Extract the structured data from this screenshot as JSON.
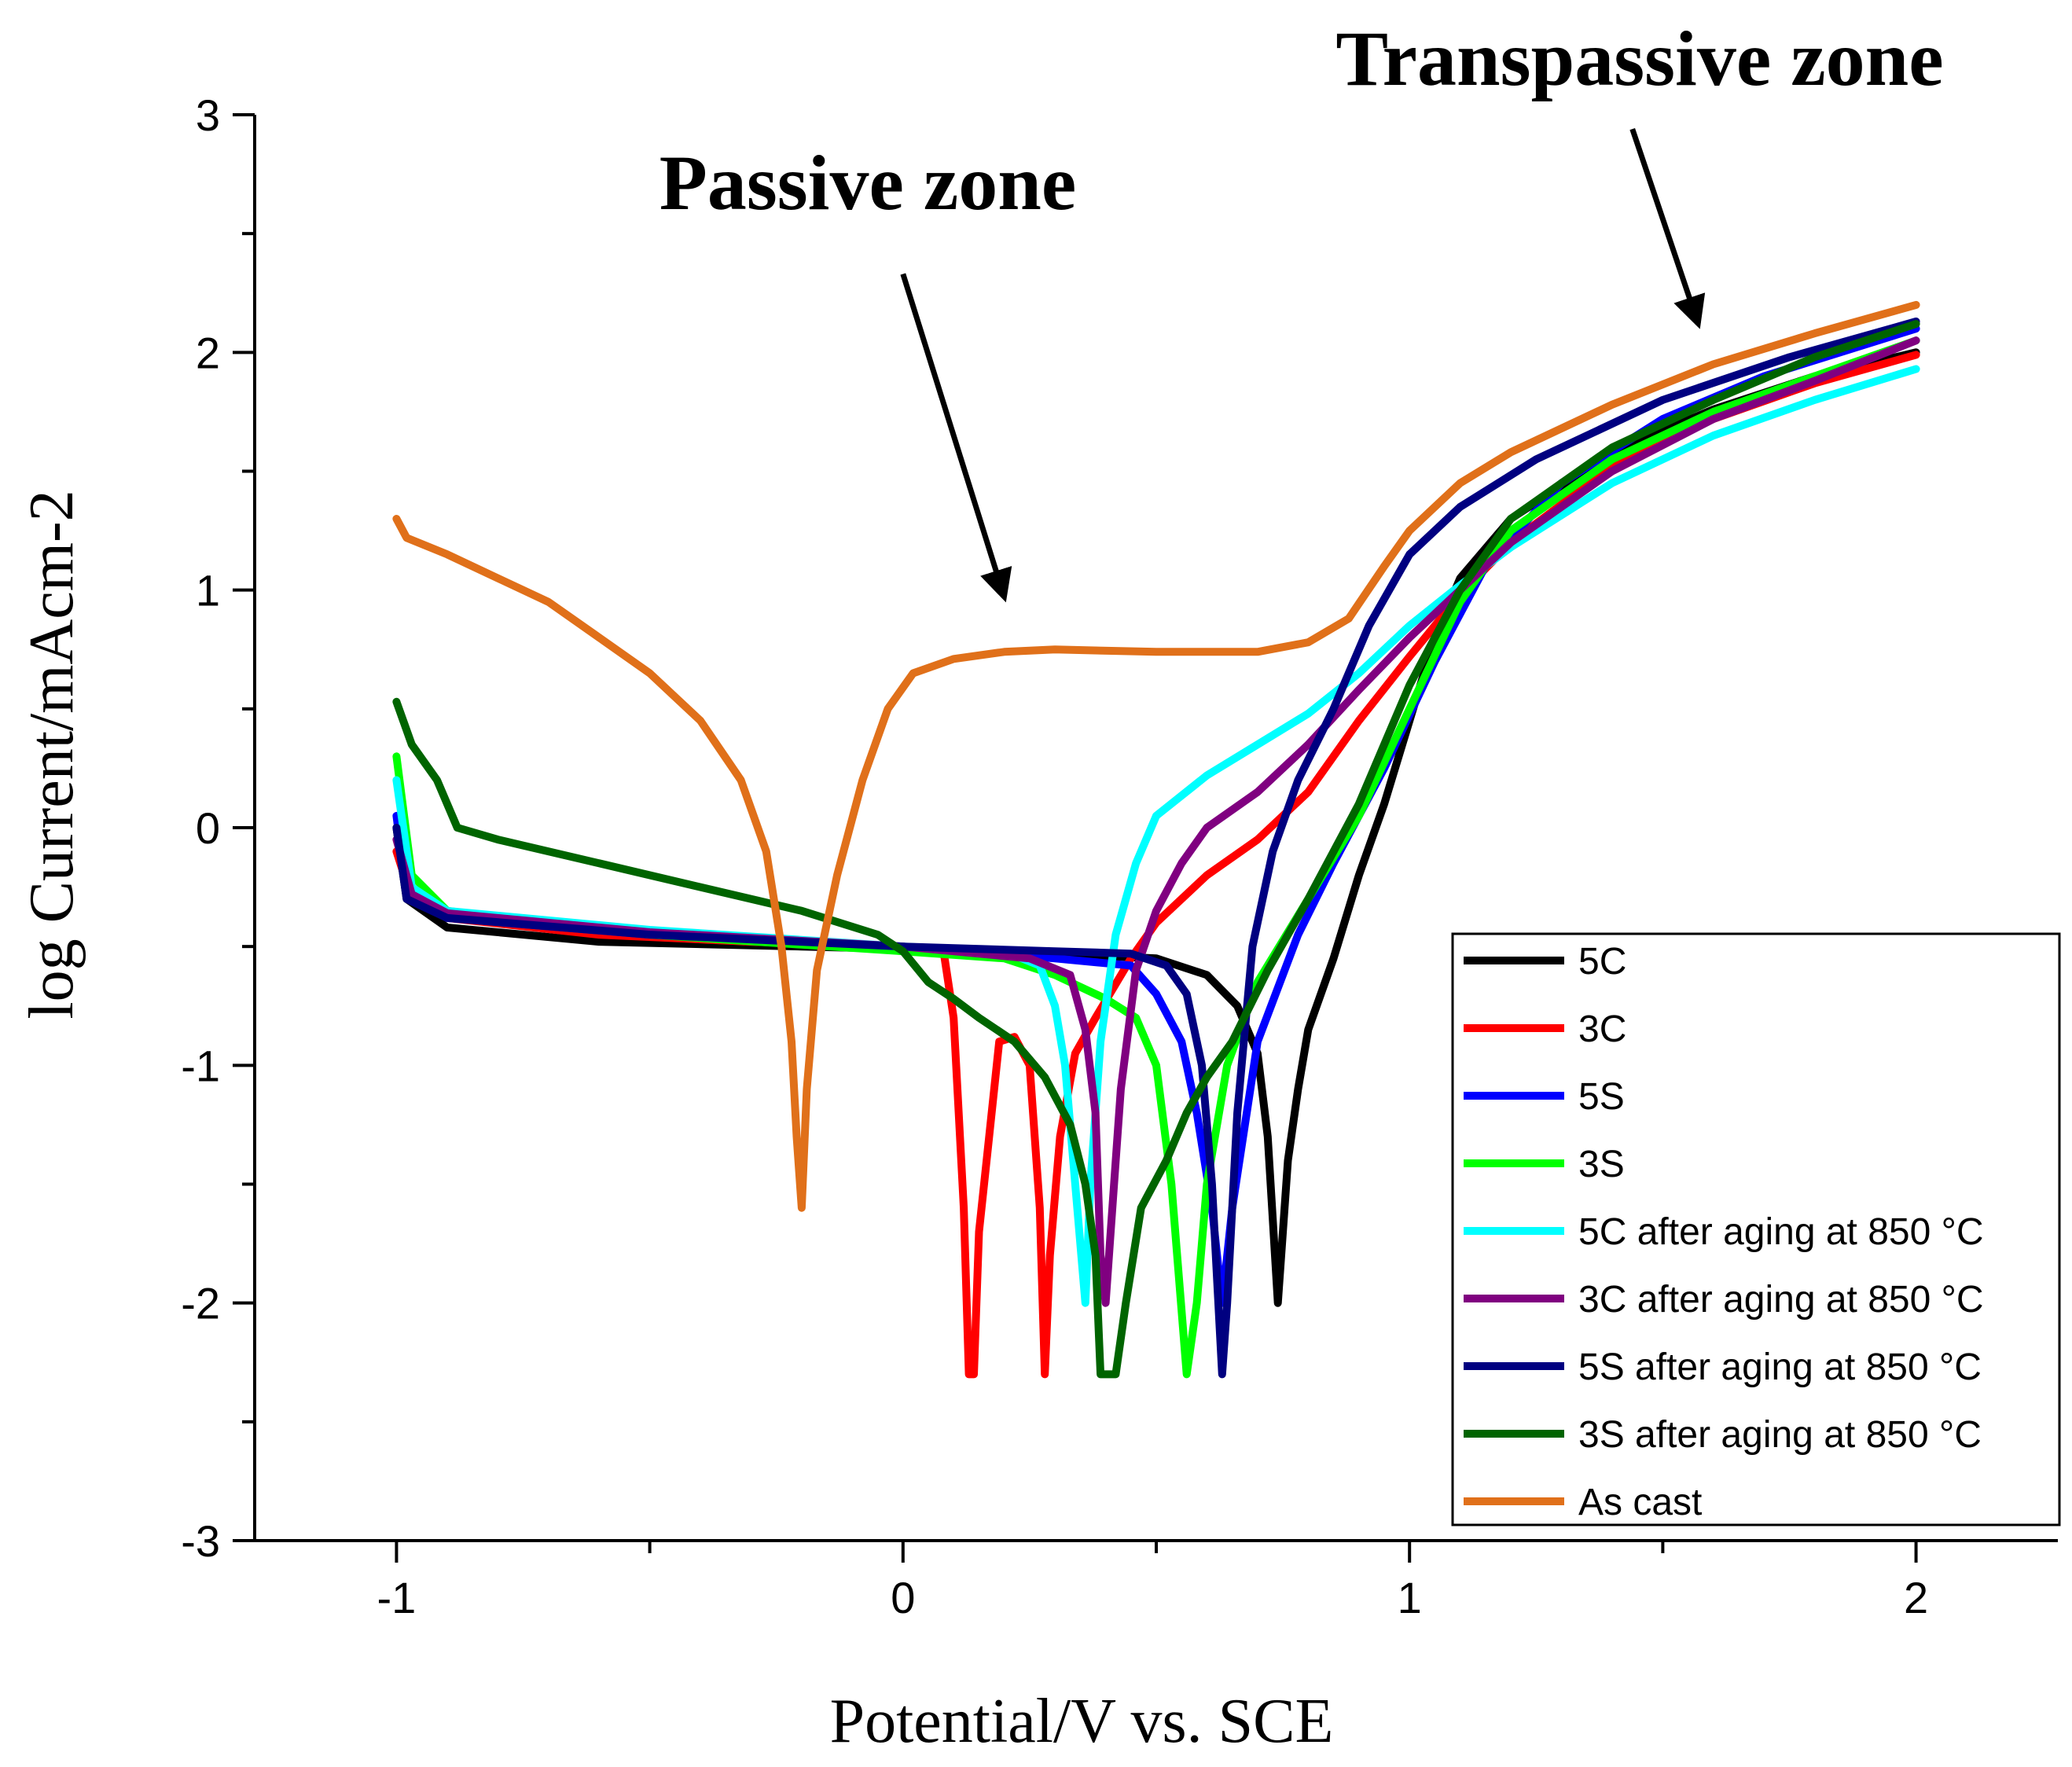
{
  "chart_data": {
    "type": "line",
    "title": "",
    "xlabel": "Potential/V vs. SCE",
    "ylabel": "log Current/mAcm-2",
    "xlim": [
      -1.28,
      2.28
    ],
    "ylim": [
      -3,
      3
    ],
    "xticks": [
      -1,
      0,
      1,
      2
    ],
    "xtick_labels": [
      "-1",
      "0",
      "1",
      "2"
    ],
    "yticks": [
      -3,
      -2,
      -1,
      0,
      1,
      2,
      3
    ],
    "ytick_labels": [
      "-3",
      "-2",
      "-1",
      "0",
      "1",
      "2",
      "3"
    ],
    "grid": false,
    "legend_position": "bottom-right",
    "annotations": [
      {
        "text": "Transpassive zone",
        "from": [
          1.44,
          2.94
        ],
        "to": [
          1.57,
          2.12
        ]
      },
      {
        "text": "Passive zone",
        "from": [
          0.0,
          2.33
        ],
        "to": [
          0.2,
          0.97
        ]
      }
    ],
    "series": [
      {
        "name": "5C",
        "color": "#000000",
        "points": [
          [
            -1.0,
            0.0
          ],
          [
            -0.98,
            -0.3
          ],
          [
            -0.9,
            -0.42
          ],
          [
            -0.6,
            -0.48
          ],
          [
            -0.2,
            -0.5
          ],
          [
            0.2,
            -0.52
          ],
          [
            0.5,
            -0.55
          ],
          [
            0.6,
            -0.62
          ],
          [
            0.66,
            -0.75
          ],
          [
            0.7,
            -0.95
          ],
          [
            0.72,
            -1.3
          ],
          [
            0.74,
            -2.0
          ],
          [
            0.76,
            -1.4
          ],
          [
            0.78,
            -1.1
          ],
          [
            0.8,
            -0.85
          ],
          [
            0.85,
            -0.55
          ],
          [
            0.9,
            -0.2
          ],
          [
            0.95,
            0.1
          ],
          [
            1.0,
            0.45
          ],
          [
            1.05,
            0.8
          ],
          [
            1.1,
            1.05
          ],
          [
            1.2,
            1.3
          ],
          [
            1.4,
            1.58
          ],
          [
            1.6,
            1.76
          ],
          [
            1.8,
            1.9
          ],
          [
            2.0,
            2.0
          ]
        ]
      },
      {
        "name": "3C",
        "color": "#ff0000",
        "points": [
          [
            -1.0,
            -0.1
          ],
          [
            -0.97,
            -0.3
          ],
          [
            -0.9,
            -0.38
          ],
          [
            -0.6,
            -0.45
          ],
          [
            -0.3,
            -0.48
          ],
          [
            0.0,
            -0.5
          ],
          [
            0.08,
            -0.52
          ],
          [
            0.1,
            -0.8
          ],
          [
            0.12,
            -1.6
          ],
          [
            0.13,
            -2.3
          ],
          [
            0.14,
            -2.3
          ],
          [
            0.15,
            -1.7
          ],
          [
            0.17,
            -1.3
          ],
          [
            0.19,
            -0.9
          ],
          [
            0.22,
            -0.88
          ],
          [
            0.25,
            -1.0
          ],
          [
            0.27,
            -1.6
          ],
          [
            0.28,
            -2.3
          ],
          [
            0.29,
            -1.8
          ],
          [
            0.31,
            -1.3
          ],
          [
            0.34,
            -0.95
          ],
          [
            0.38,
            -0.8
          ],
          [
            0.45,
            -0.55
          ],
          [
            0.5,
            -0.4
          ],
          [
            0.6,
            -0.2
          ],
          [
            0.7,
            -0.05
          ],
          [
            0.8,
            0.15
          ],
          [
            0.9,
            0.45
          ],
          [
            1.0,
            0.72
          ],
          [
            1.1,
            0.98
          ],
          [
            1.2,
            1.2
          ],
          [
            1.4,
            1.52
          ],
          [
            1.6,
            1.72
          ],
          [
            1.8,
            1.87
          ],
          [
            2.0,
            1.99
          ]
        ]
      },
      {
        "name": "5S",
        "color": "#0000ff",
        "points": [
          [
            -1.0,
            0.05
          ],
          [
            -0.98,
            -0.28
          ],
          [
            -0.9,
            -0.38
          ],
          [
            -0.5,
            -0.45
          ],
          [
            0.0,
            -0.5
          ],
          [
            0.3,
            -0.55
          ],
          [
            0.45,
            -0.58
          ],
          [
            0.5,
            -0.7
          ],
          [
            0.55,
            -0.9
          ],
          [
            0.58,
            -1.2
          ],
          [
            0.61,
            -1.6
          ],
          [
            0.63,
            -2.0
          ],
          [
            0.65,
            -1.6
          ],
          [
            0.7,
            -0.9
          ],
          [
            0.78,
            -0.45
          ],
          [
            0.85,
            -0.15
          ],
          [
            0.95,
            0.25
          ],
          [
            1.05,
            0.7
          ],
          [
            1.15,
            1.1
          ],
          [
            1.3,
            1.45
          ],
          [
            1.5,
            1.72
          ],
          [
            1.7,
            1.9
          ],
          [
            2.0,
            2.1
          ]
        ]
      },
      {
        "name": "3S",
        "color": "#00ff00",
        "points": [
          [
            -1.0,
            0.3
          ],
          [
            -0.97,
            -0.2
          ],
          [
            -0.9,
            -0.35
          ],
          [
            -0.5,
            -0.45
          ],
          [
            0.0,
            -0.52
          ],
          [
            0.2,
            -0.55
          ],
          [
            0.3,
            -0.62
          ],
          [
            0.4,
            -0.72
          ],
          [
            0.46,
            -0.8
          ],
          [
            0.5,
            -1.0
          ],
          [
            0.53,
            -1.5
          ],
          [
            0.56,
            -2.3
          ],
          [
            0.58,
            -2.0
          ],
          [
            0.6,
            -1.5
          ],
          [
            0.64,
            -1.0
          ],
          [
            0.7,
            -0.65
          ],
          [
            0.8,
            -0.3
          ],
          [
            0.9,
            0.05
          ],
          [
            1.0,
            0.5
          ],
          [
            1.1,
            0.95
          ],
          [
            1.2,
            1.25
          ],
          [
            1.4,
            1.55
          ],
          [
            1.6,
            1.75
          ],
          [
            1.8,
            1.9
          ],
          [
            2.0,
            2.05
          ]
        ]
      },
      {
        "name": "5C after aging at 850 °C",
        "color": "#00ffff",
        "points": [
          [
            -1.0,
            0.2
          ],
          [
            -0.97,
            -0.25
          ],
          [
            -0.9,
            -0.35
          ],
          [
            -0.5,
            -0.43
          ],
          [
            0.0,
            -0.5
          ],
          [
            0.2,
            -0.52
          ],
          [
            0.27,
            -0.58
          ],
          [
            0.3,
            -0.75
          ],
          [
            0.32,
            -1.0
          ],
          [
            0.34,
            -1.5
          ],
          [
            0.36,
            -2.0
          ],
          [
            0.37,
            -1.5
          ],
          [
            0.39,
            -0.9
          ],
          [
            0.42,
            -0.45
          ],
          [
            0.46,
            -0.15
          ],
          [
            0.5,
            0.05
          ],
          [
            0.6,
            0.22
          ],
          [
            0.7,
            0.35
          ],
          [
            0.8,
            0.48
          ],
          [
            0.9,
            0.65
          ],
          [
            1.0,
            0.85
          ],
          [
            1.1,
            1.02
          ],
          [
            1.2,
            1.18
          ],
          [
            1.4,
            1.45
          ],
          [
            1.6,
            1.65
          ],
          [
            1.8,
            1.8
          ],
          [
            2.0,
            1.93
          ]
        ]
      },
      {
        "name": "3C after aging at 850 °C",
        "color": "#800080",
        "points": [
          [
            -1.0,
            -0.05
          ],
          [
            -0.97,
            -0.28
          ],
          [
            -0.9,
            -0.36
          ],
          [
            -0.5,
            -0.44
          ],
          [
            0.0,
            -0.5
          ],
          [
            0.25,
            -0.55
          ],
          [
            0.33,
            -0.62
          ],
          [
            0.36,
            -0.85
          ],
          [
            0.38,
            -1.2
          ],
          [
            0.39,
            -1.8
          ],
          [
            0.4,
            -2.0
          ],
          [
            0.41,
            -1.7
          ],
          [
            0.43,
            -1.1
          ],
          [
            0.46,
            -0.6
          ],
          [
            0.5,
            -0.35
          ],
          [
            0.55,
            -0.15
          ],
          [
            0.6,
            0.0
          ],
          [
            0.7,
            0.15
          ],
          [
            0.8,
            0.35
          ],
          [
            0.9,
            0.58
          ],
          [
            1.0,
            0.8
          ],
          [
            1.1,
            1.0
          ],
          [
            1.2,
            1.2
          ],
          [
            1.4,
            1.5
          ],
          [
            1.6,
            1.72
          ],
          [
            1.8,
            1.88
          ],
          [
            2.0,
            2.05
          ]
        ]
      },
      {
        "name": "5S after aging at 850 °C",
        "color": "#000080",
        "points": [
          [
            -1.0,
            0.0
          ],
          [
            -0.98,
            -0.3
          ],
          [
            -0.9,
            -0.38
          ],
          [
            -0.5,
            -0.45
          ],
          [
            0.0,
            -0.5
          ],
          [
            0.3,
            -0.52
          ],
          [
            0.45,
            -0.53
          ],
          [
            0.52,
            -0.58
          ],
          [
            0.56,
            -0.7
          ],
          [
            0.59,
            -1.0
          ],
          [
            0.61,
            -1.5
          ],
          [
            0.63,
            -2.3
          ],
          [
            0.64,
            -2.0
          ],
          [
            0.66,
            -1.2
          ],
          [
            0.69,
            -0.5
          ],
          [
            0.73,
            -0.1
          ],
          [
            0.78,
            0.2
          ],
          [
            0.85,
            0.5
          ],
          [
            0.92,
            0.85
          ],
          [
            1.0,
            1.15
          ],
          [
            1.1,
            1.35
          ],
          [
            1.25,
            1.55
          ],
          [
            1.5,
            1.8
          ],
          [
            1.75,
            1.98
          ],
          [
            2.0,
            2.13
          ]
        ]
      },
      {
        "name": "3S after aging at 850 °C",
        "color": "#006400",
        "points": [
          [
            -1.0,
            0.53
          ],
          [
            -0.97,
            0.35
          ],
          [
            -0.92,
            0.2
          ],
          [
            -0.88,
            0.0
          ],
          [
            -0.8,
            -0.05
          ],
          [
            -0.6,
            -0.15
          ],
          [
            -0.4,
            -0.25
          ],
          [
            -0.2,
            -0.35
          ],
          [
            -0.05,
            -0.45
          ],
          [
            0.0,
            -0.52
          ],
          [
            0.05,
            -0.65
          ],
          [
            0.1,
            -0.72
          ],
          [
            0.15,
            -0.8
          ],
          [
            0.22,
            -0.9
          ],
          [
            0.28,
            -1.05
          ],
          [
            0.33,
            -1.25
          ],
          [
            0.36,
            -1.5
          ],
          [
            0.38,
            -1.8
          ],
          [
            0.39,
            -2.3
          ],
          [
            0.42,
            -2.3
          ],
          [
            0.44,
            -2.0
          ],
          [
            0.47,
            -1.6
          ],
          [
            0.52,
            -1.4
          ],
          [
            0.56,
            -1.2
          ],
          [
            0.6,
            -1.05
          ],
          [
            0.65,
            -0.9
          ],
          [
            0.72,
            -0.6
          ],
          [
            0.8,
            -0.3
          ],
          [
            0.9,
            0.1
          ],
          [
            1.0,
            0.6
          ],
          [
            1.1,
            1.0
          ],
          [
            1.2,
            1.3
          ],
          [
            1.4,
            1.6
          ],
          [
            1.6,
            1.8
          ],
          [
            1.8,
            1.98
          ],
          [
            2.0,
            2.12
          ]
        ]
      },
      {
        "name": "As cast",
        "color": "#e0701a",
        "points": [
          [
            -1.0,
            1.3
          ],
          [
            -0.98,
            1.22
          ],
          [
            -0.9,
            1.15
          ],
          [
            -0.8,
            1.05
          ],
          [
            -0.7,
            0.95
          ],
          [
            -0.6,
            0.8
          ],
          [
            -0.5,
            0.65
          ],
          [
            -0.4,
            0.45
          ],
          [
            -0.32,
            0.2
          ],
          [
            -0.27,
            -0.1
          ],
          [
            -0.24,
            -0.5
          ],
          [
            -0.22,
            -0.9
          ],
          [
            -0.21,
            -1.3
          ],
          [
            -0.2,
            -1.6
          ],
          [
            -0.19,
            -1.1
          ],
          [
            -0.17,
            -0.6
          ],
          [
            -0.13,
            -0.2
          ],
          [
            -0.08,
            0.2
          ],
          [
            -0.03,
            0.5
          ],
          [
            0.02,
            0.65
          ],
          [
            0.1,
            0.71
          ],
          [
            0.2,
            0.74
          ],
          [
            0.3,
            0.75
          ],
          [
            0.5,
            0.74
          ],
          [
            0.7,
            0.74
          ],
          [
            0.8,
            0.78
          ],
          [
            0.88,
            0.88
          ],
          [
            0.95,
            1.1
          ],
          [
            1.0,
            1.25
          ],
          [
            1.1,
            1.45
          ],
          [
            1.2,
            1.58
          ],
          [
            1.4,
            1.78
          ],
          [
            1.6,
            1.95
          ],
          [
            1.8,
            2.08
          ],
          [
            2.0,
            2.2
          ]
        ]
      }
    ]
  }
}
